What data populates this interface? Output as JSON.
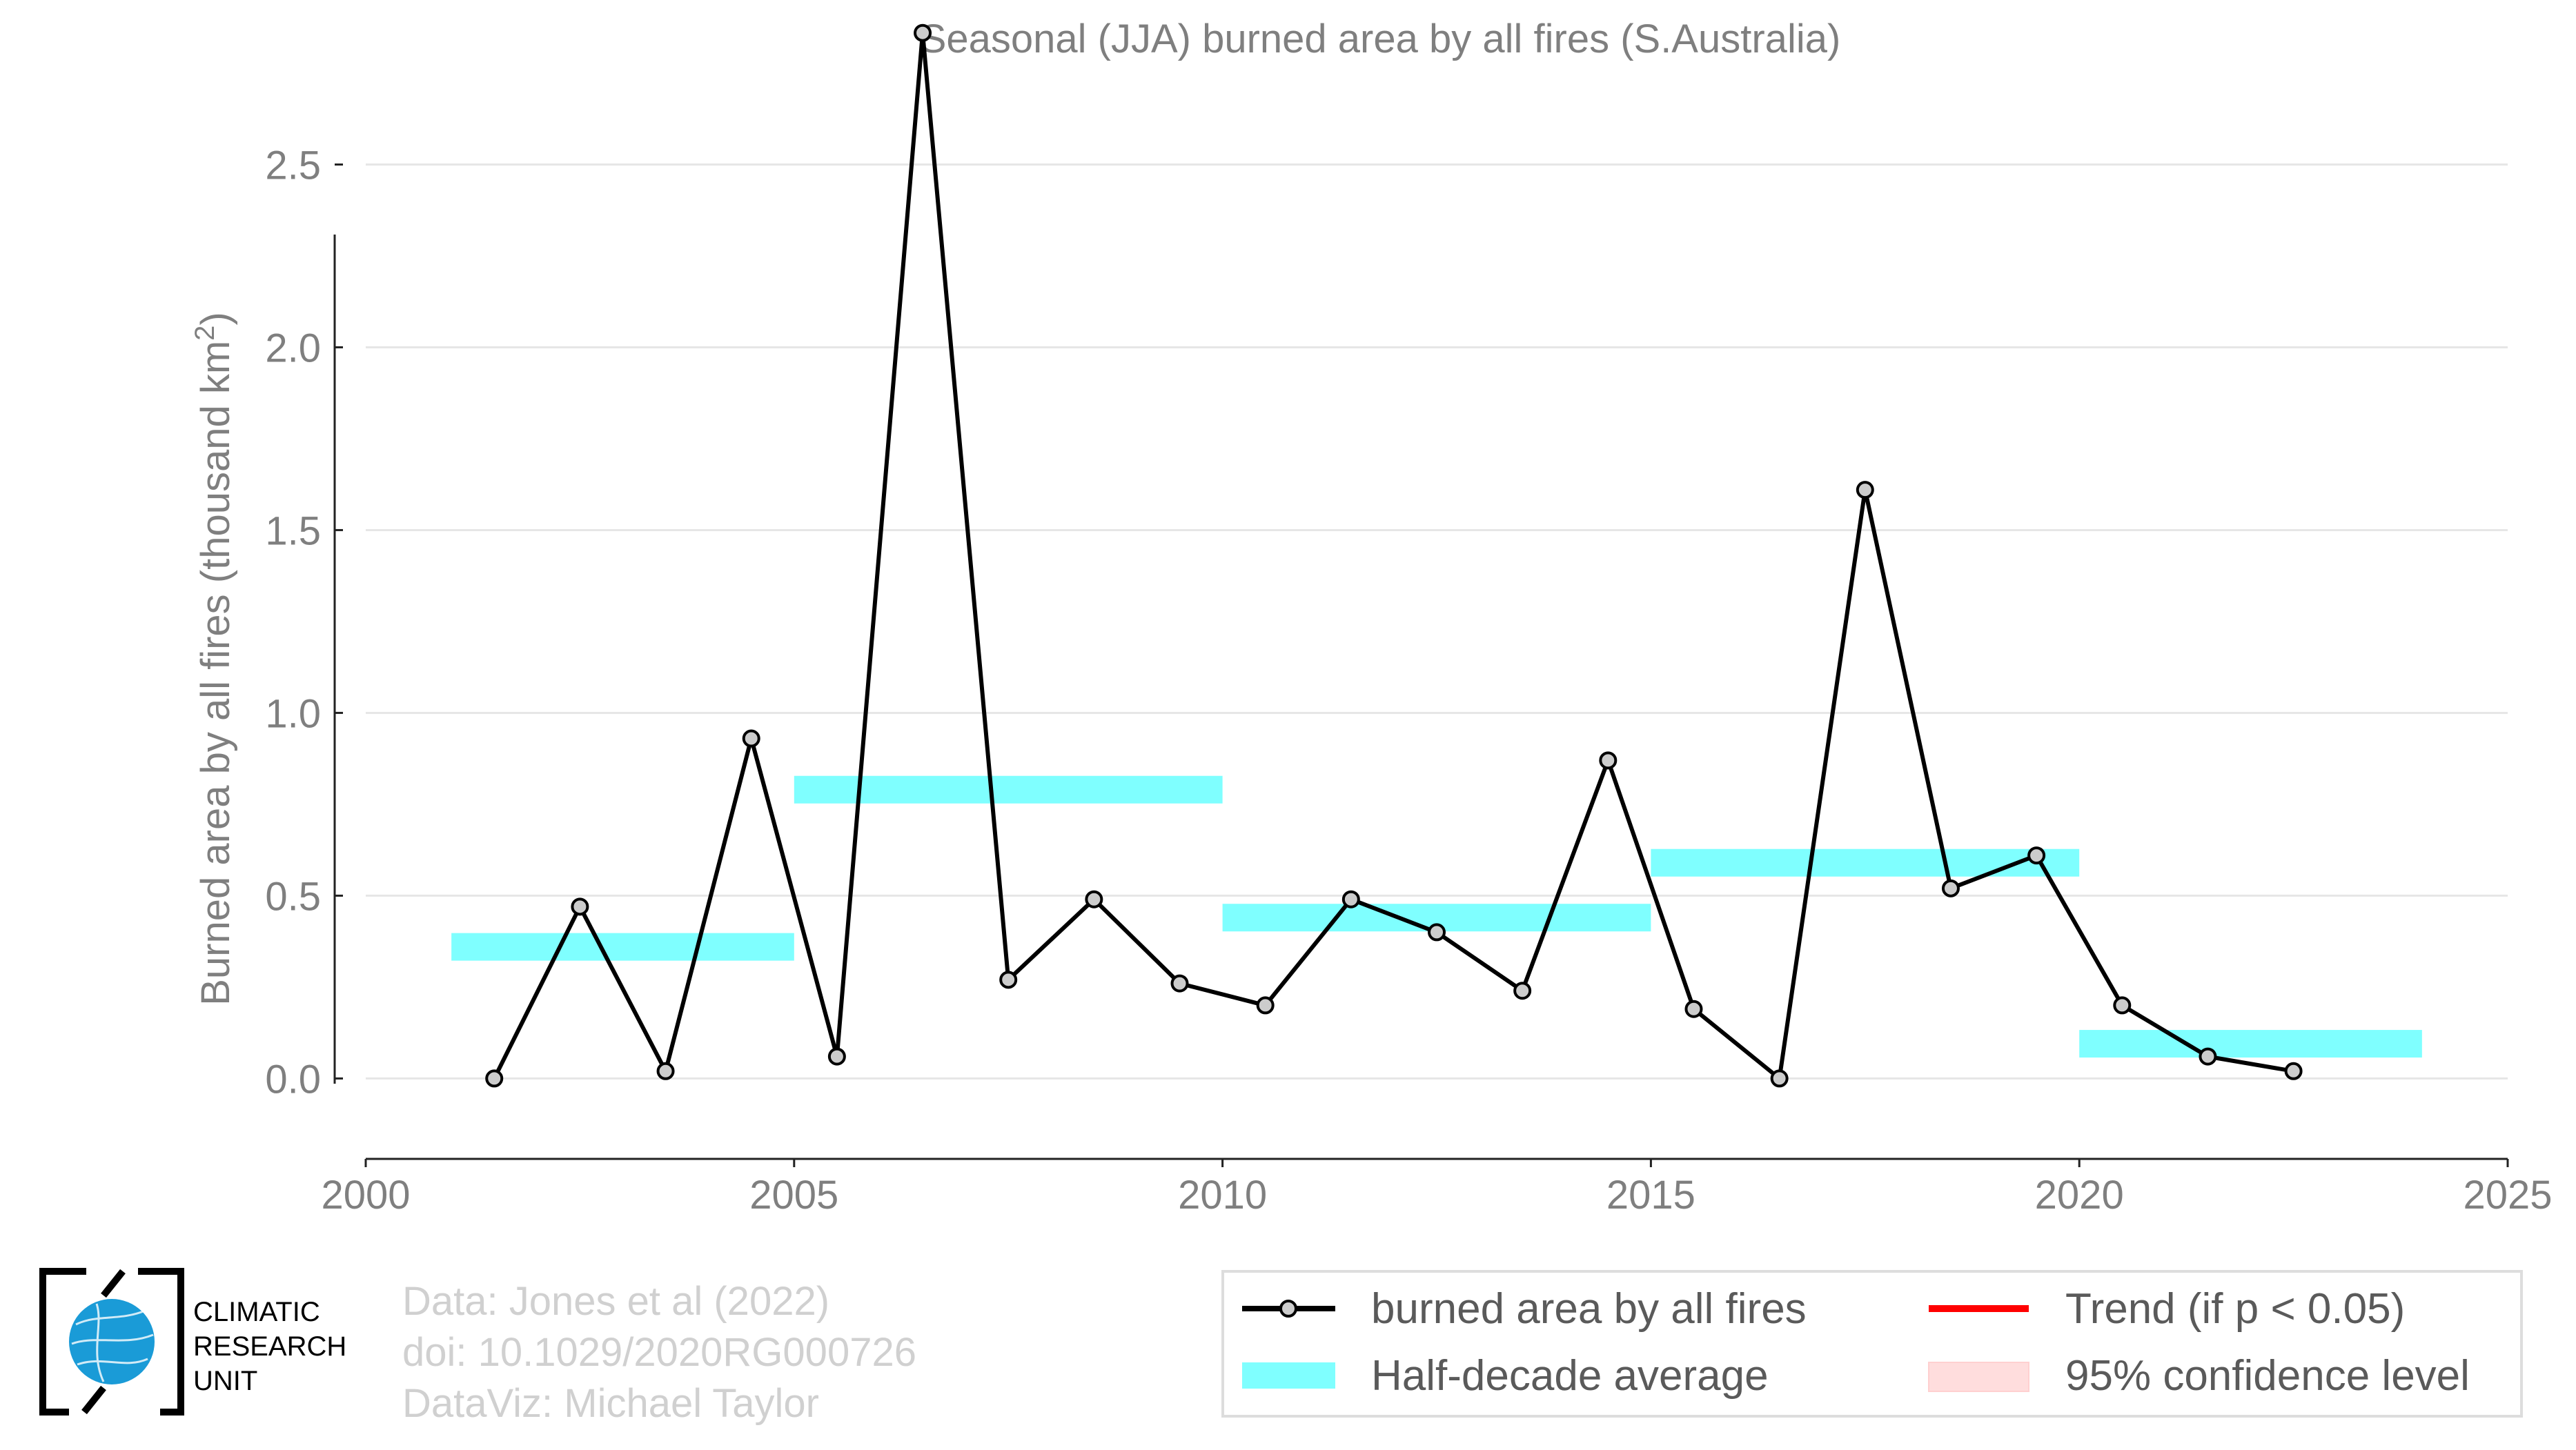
{
  "chart_data": {
    "type": "line",
    "title": "Seasonal (JJA) burned area by all fires (S.Australia)",
    "ylabel_main": "Burned area by all fires (thousand km",
    "ylabel_sup": "2",
    "ylabel_end": ")",
    "xlim": [
      2000,
      2025
    ],
    "ylim": [
      -0.22,
      2.95
    ],
    "x_ticks": [
      "2000",
      "2005",
      "2010",
      "2015",
      "2020",
      "2025"
    ],
    "y_ticks": [
      "0.0",
      "0.5",
      "1.0",
      "1.5",
      "2.0",
      "2.5"
    ],
    "grid": "horizontal",
    "series": [
      {
        "name": "burned area by all fires",
        "color": "#000000",
        "marker_fill": "#cccccc",
        "x": [
          2001.5,
          2002.5,
          2003.5,
          2004.5,
          2005.5,
          2006.5,
          2007.5,
          2008.5,
          2009.5,
          2010.5,
          2011.5,
          2012.5,
          2013.5,
          2014.5,
          2015.5,
          2016.5,
          2017.5,
          2018.5,
          2019.5,
          2020.5,
          2021.5,
          2022.5
        ],
        "y": [
          0.0,
          0.47,
          0.02,
          0.93,
          0.06,
          2.86,
          0.27,
          0.49,
          0.26,
          0.2,
          0.49,
          0.4,
          0.24,
          0.87,
          0.19,
          0.0,
          1.61,
          0.52,
          0.61,
          0.2,
          0.06,
          0.02
        ]
      }
    ],
    "half_decade_average": {
      "name": "Half-decade average",
      "color": "#7fffff",
      "segments": [
        {
          "x0": 2001,
          "x1": 2005,
          "y": 0.36
        },
        {
          "x0": 2005,
          "x1": 2010,
          "y": 0.79
        },
        {
          "x0": 2010,
          "x1": 2015,
          "y": 0.44
        },
        {
          "x0": 2015,
          "x1": 2020,
          "y": 0.59
        },
        {
          "x0": 2020,
          "x1": 2024,
          "y": 0.095
        }
      ]
    },
    "legend": {
      "placement": "bottom-right",
      "entries": [
        {
          "label": "burned area by all fires",
          "color": "#000000"
        },
        {
          "label": "Trend (if p < 0.05)",
          "color": "#ff0000"
        },
        {
          "label": "Half-decade average",
          "color": "#7fffff"
        },
        {
          "label": "95% confidence level",
          "color": "#ffdddd"
        }
      ]
    }
  },
  "credits": {
    "line1": "Data: Jones et al (2022)",
    "line2": "doi: 10.1029/2020RG000726",
    "line3": "DataViz: Michael Taylor"
  },
  "logo": {
    "line1": "CLIMATIC",
    "line2": "RESEARCH",
    "line3": "UNIT",
    "globe_color": "#1a9bd7"
  }
}
